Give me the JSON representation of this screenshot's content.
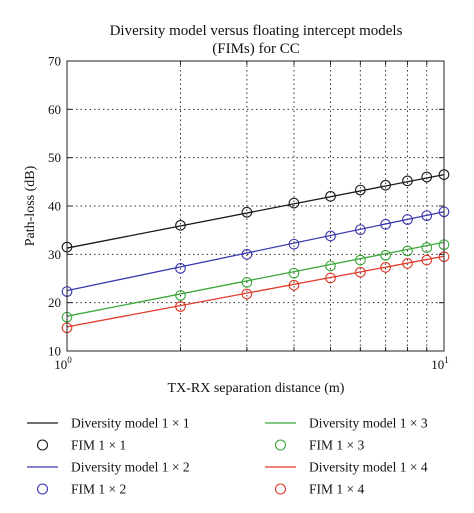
{
  "chart_data": {
    "type": "line",
    "title": "Diversity model versus floating intercept models",
    "subtitle": "(FIMs) for CC",
    "xlabel": "TX-RX separation distance (m)",
    "ylabel": "Path-loss (dB)",
    "xscale": "log",
    "xlim": [
      1,
      10
    ],
    "ylim": [
      10,
      70
    ],
    "grid": true,
    "x_tick_labels": [
      {
        "value": 1,
        "base": "10",
        "exp": "0"
      },
      {
        "value": 10,
        "base": "10",
        "exp": "1"
      }
    ],
    "y_ticks": [
      10,
      20,
      30,
      40,
      50,
      60,
      70
    ],
    "x_gridlines": [
      2,
      3,
      4,
      5,
      6,
      7,
      8,
      9
    ],
    "legend_placement": "bottom",
    "series": [
      {
        "name": "Diversity model 1 × 1",
        "kind": "line",
        "color": "#1a1a1a",
        "x": [
          1,
          10
        ],
        "y": [
          31.3,
          46.5
        ]
      },
      {
        "name": "FIM 1 × 1",
        "kind": "marker",
        "color": "#1a1a1a",
        "x": [
          1,
          2,
          3,
          4,
          5,
          6,
          7,
          8,
          9,
          10
        ],
        "y": [
          31.5,
          36.0,
          38.7,
          40.6,
          42.0,
          43.3,
          44.3,
          45.2,
          46.0,
          46.5
        ]
      },
      {
        "name": "Diversity model 1 × 2",
        "kind": "line",
        "color": "#3a3ab0",
        "x": [
          1,
          10
        ],
        "y": [
          22.5,
          38.8
        ]
      },
      {
        "name": "FIM 1 × 2",
        "kind": "marker",
        "color": "#3a3ab0",
        "x": [
          1,
          2,
          3,
          4,
          5,
          6,
          7,
          8,
          9,
          10
        ],
        "y": [
          22.3,
          27.1,
          30.0,
          32.1,
          33.8,
          35.1,
          36.2,
          37.2,
          38.0,
          38.8
        ]
      },
      {
        "name": "Diversity model 1 × 3",
        "kind": "line",
        "color": "#3aa83a",
        "x": [
          1,
          10
        ],
        "y": [
          17.2,
          32.5
        ]
      },
      {
        "name": "FIM 1 × 3",
        "kind": "marker",
        "color": "#3aa83a",
        "x": [
          1,
          2,
          3,
          4,
          5,
          6,
          7,
          8,
          9,
          10
        ],
        "y": [
          17.0,
          21.5,
          24.2,
          26.1,
          27.6,
          28.8,
          29.8,
          30.7,
          31.4,
          32.0
        ]
      },
      {
        "name": "Diversity model 1 × 4",
        "kind": "line",
        "color": "#e03a2a",
        "x": [
          1,
          10
        ],
        "y": [
          15.0,
          29.6
        ]
      },
      {
        "name": "FIM 1 × 4",
        "kind": "marker",
        "color": "#e03a2a",
        "x": [
          1,
          2,
          3,
          4,
          5,
          6,
          7,
          8,
          9,
          10
        ],
        "y": [
          14.8,
          19.2,
          21.8,
          23.6,
          25.1,
          26.3,
          27.3,
          28.1,
          28.8,
          29.5
        ]
      }
    ],
    "legend": [
      {
        "label": "Diversity model 1 × 1",
        "kind": "line",
        "color": "#1a1a1a"
      },
      {
        "label": "Diversity model 1 × 3",
        "kind": "line",
        "color": "#3aa83a"
      },
      {
        "label": "FIM 1 × 1",
        "kind": "marker",
        "color": "#1a1a1a"
      },
      {
        "label": "FIM 1 × 3",
        "kind": "marker",
        "color": "#3aa83a"
      },
      {
        "label": "Diversity model 1 × 2",
        "kind": "line",
        "color": "#3a3ab0"
      },
      {
        "label": "Diversity model 1 × 4",
        "kind": "line",
        "color": "#e03a2a"
      },
      {
        "label": "FIM 1 × 2",
        "kind": "marker",
        "color": "#3a3ab0"
      },
      {
        "label": "FIM 1 × 4",
        "kind": "marker",
        "color": "#e03a2a"
      }
    ]
  }
}
